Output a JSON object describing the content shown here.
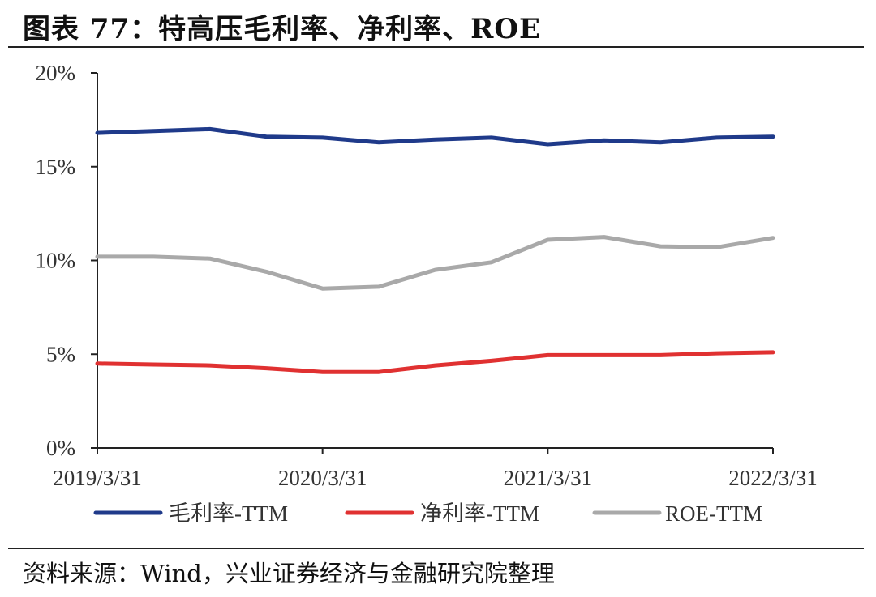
{
  "header": {
    "title": "图表 77：特高压毛利率、净利率、ROE"
  },
  "footer": {
    "source": "资料来源：Wind，兴业证券经济与金融研究院整理"
  },
  "chart_data": {
    "type": "line",
    "title": "",
    "xlabel": "",
    "ylabel": "",
    "x_tick_labels": [
      "2019/3/31",
      "2020/3/31",
      "2021/3/31",
      "2022/3/31"
    ],
    "y_tick_labels": [
      "0%",
      "5%",
      "10%",
      "15%",
      "20%"
    ],
    "ylim": [
      0,
      20
    ],
    "y_ticks": [
      0,
      5,
      10,
      15,
      20
    ],
    "grid": false,
    "legend_position": "bottom",
    "x": [
      "2019/3/31",
      "2019/6/30",
      "2019/9/30",
      "2019/12/31",
      "2020/3/31",
      "2020/6/30",
      "2020/9/30",
      "2020/12/31",
      "2021/3/31",
      "2021/6/30",
      "2021/9/30",
      "2021/12/31",
      "2022/3/31"
    ],
    "series": [
      {
        "name": "毛利率-TTM",
        "color": "#1f3a8a",
        "values": [
          16.8,
          16.9,
          17.0,
          16.6,
          16.55,
          16.3,
          16.45,
          16.55,
          16.2,
          16.4,
          16.3,
          16.55,
          16.6
        ]
      },
      {
        "name": "净利率-TTM",
        "color": "#e03131",
        "values": [
          4.5,
          4.45,
          4.4,
          4.25,
          4.05,
          4.05,
          4.4,
          4.65,
          4.95,
          4.95,
          4.95,
          5.05,
          5.1
        ]
      },
      {
        "name": "ROE-TTM",
        "color": "#a9a9a9",
        "values": [
          10.2,
          10.2,
          10.1,
          9.4,
          8.5,
          8.6,
          9.5,
          9.9,
          11.1,
          11.25,
          10.75,
          10.7,
          11.2
        ]
      }
    ]
  }
}
